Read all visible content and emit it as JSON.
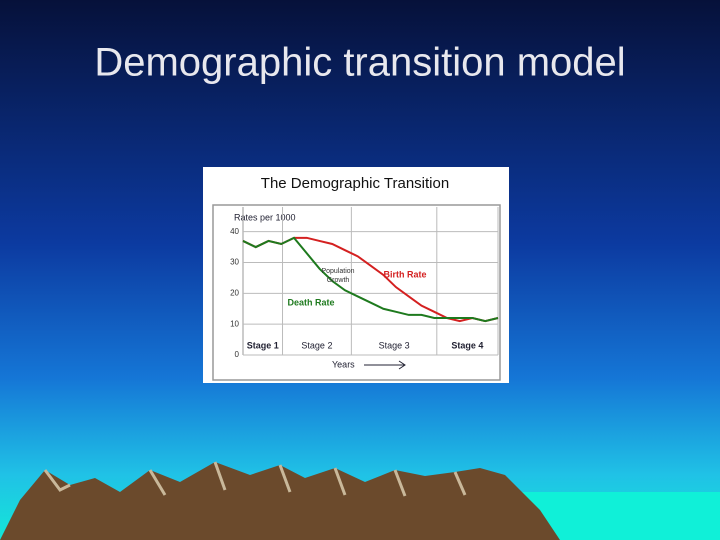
{
  "slide_title": "Demographic transition model",
  "chart_data": {
    "type": "line",
    "title": "The Demographic Transition",
    "y_label": "Rates per 1000",
    "x_label": "Years",
    "x": [
      0,
      1,
      2,
      3,
      4,
      5,
      6,
      7,
      8,
      9,
      10,
      11,
      12,
      13,
      14,
      15,
      16,
      17,
      18,
      19,
      20
    ],
    "xlim": [
      0,
      20
    ],
    "ylim": [
      0,
      48
    ],
    "yticks": [
      0,
      10,
      20,
      30,
      40
    ],
    "grid": true,
    "stages": [
      {
        "label": "Stage 1",
        "start": 0,
        "end": 3.1
      },
      {
        "label": "Stage 2",
        "start": 3.1,
        "end": 8.5
      },
      {
        "label": "Stage 3",
        "start": 8.5,
        "end": 15.2
      },
      {
        "label": "Stage 4",
        "start": 15.2,
        "end": 20
      }
    ],
    "series": [
      {
        "name": "Birth Rate",
        "color": "#d42020",
        "values": [
          37,
          35,
          37,
          36,
          38,
          38,
          37,
          36,
          34,
          32,
          29,
          26,
          22,
          19,
          16,
          14,
          12,
          11,
          12,
          11,
          12
        ]
      },
      {
        "name": "Death Rate",
        "color": "#1e7a1e",
        "values": [
          37,
          35,
          37,
          36,
          38,
          33,
          28,
          24,
          21,
          19,
          17,
          15,
          14,
          13,
          13,
          12,
          12,
          12,
          12,
          11,
          12
        ]
      }
    ],
    "annotations": [
      "Population",
      "Growth"
    ]
  }
}
